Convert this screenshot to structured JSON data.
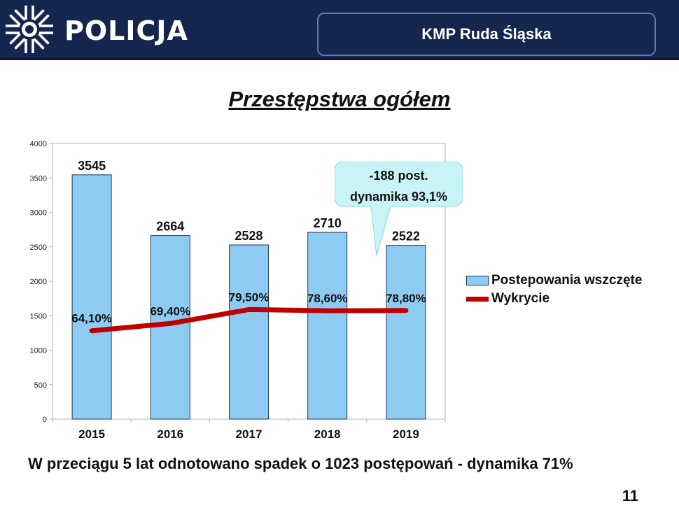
{
  "header": {
    "brand": "POLICJA",
    "unit": "KMP Ruda Śląska",
    "logo_icon": "police-star-icon",
    "colors": {
      "background": "#14254e",
      "box_border": "#5d7ab8"
    }
  },
  "chart_data": {
    "type": "bar",
    "title": "Przestępstwa ogółem",
    "categories": [
      "2015",
      "2016",
      "2017",
      "2018",
      "2019"
    ],
    "ylim": [
      0,
      4000
    ],
    "yticks": [
      0,
      500,
      1000,
      1500,
      2000,
      2500,
      3000,
      3500,
      4000
    ],
    "grid": false,
    "legend_position": "right",
    "series": [
      {
        "name": "Postepowania wszczęte",
        "type": "bar",
        "color": "#8ecbf3",
        "values": [
          3545,
          2664,
          2528,
          2710,
          2522
        ],
        "labels": [
          "3545",
          "2664",
          "2528",
          "2710",
          "2522"
        ]
      },
      {
        "name": "Wykrycie",
        "type": "line",
        "color": "#c00000",
        "values": [
          64.1,
          69.4,
          79.5,
          78.6,
          78.8
        ],
        "labels": [
          "64,10%",
          "69,40%",
          "79,50%",
          "78,60%",
          "78,80%"
        ]
      }
    ],
    "annotation": {
      "lines": [
        "-188 post.",
        "dynamika 93,1%"
      ],
      "color": "#c9f4f7"
    }
  },
  "summary": "W przeciągu 5 lat odnotowano spadek o 1023 postępowań - dynamika 71%",
  "page_number": "11"
}
